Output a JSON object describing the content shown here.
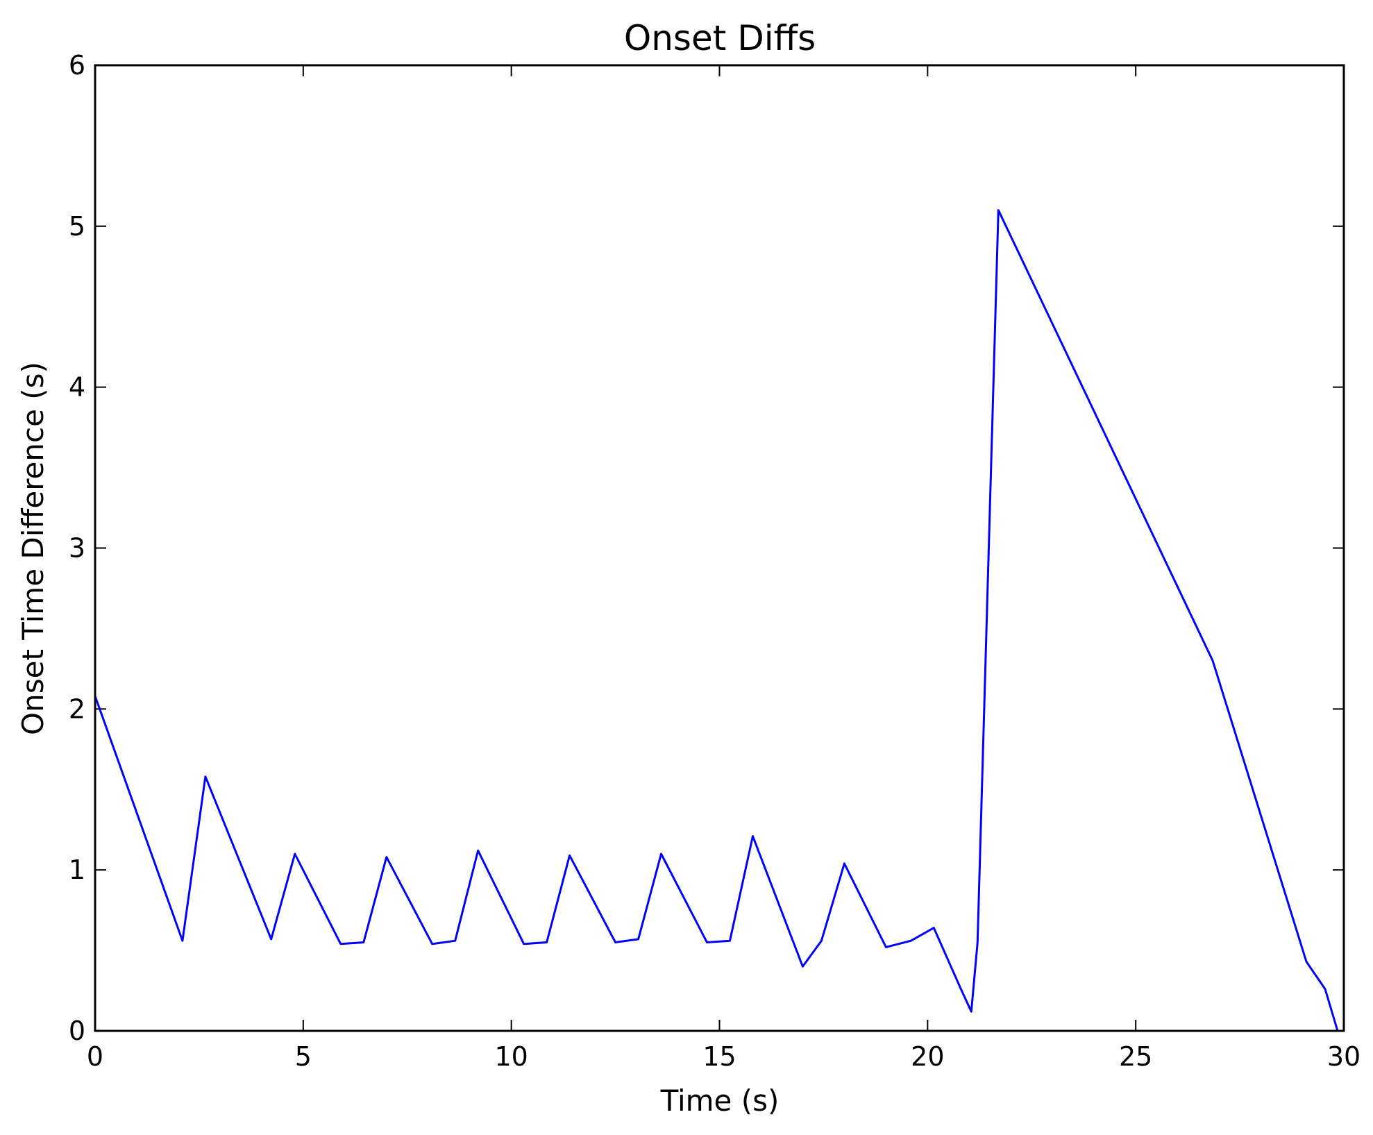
{
  "chart_data": {
    "type": "line",
    "title": "Onset Diffs",
    "xlabel": "Time (s)",
    "ylabel": "Onset Time Difference (s)",
    "xlim": [
      0,
      30
    ],
    "ylim": [
      0,
      6
    ],
    "xticks": [
      0,
      5,
      10,
      15,
      20,
      25,
      30
    ],
    "yticks": [
      0,
      1,
      2,
      3,
      4,
      5,
      6
    ],
    "grid": false,
    "line_color": "#0000ff",
    "series": [
      {
        "x": [
          0,
          2.1,
          2.65,
          4.23,
          4.8,
          5.9,
          6.45,
          7.0,
          8.1,
          8.65,
          9.2,
          10.3,
          10.85,
          11.4,
          12.5,
          13.05,
          13.6,
          14.7,
          15.25,
          15.8,
          17.0,
          17.45,
          18.0,
          19.0,
          19.6,
          20.15,
          20.8,
          21.05,
          21.2,
          21.7,
          26.85,
          29.1,
          29.55,
          29.85
        ],
        "y": [
          2.08,
          0.56,
          1.58,
          0.57,
          1.1,
          0.54,
          0.55,
          1.08,
          0.54,
          0.56,
          1.12,
          0.54,
          0.55,
          1.09,
          0.55,
          0.57,
          1.1,
          0.55,
          0.56,
          1.21,
          0.4,
          0.56,
          1.04,
          0.52,
          0.56,
          0.64,
          0.26,
          0.12,
          0.55,
          5.1,
          2.3,
          0.43,
          0.26,
          0.0
        ]
      }
    ]
  }
}
